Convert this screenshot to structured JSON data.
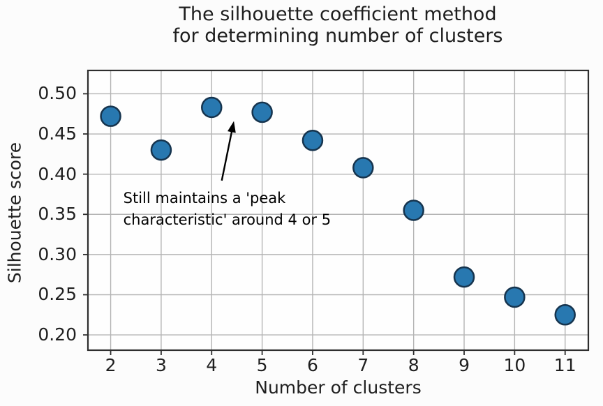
{
  "figure": {
    "title_line1": "The silhouette coefficient method",
    "title_line2": "for determining number of clusters"
  },
  "chart_data": {
    "type": "scatter",
    "title": "The silhouette coefficient method for determining number of clusters",
    "xlabel": "Number of clusters",
    "ylabel": "Silhouette score",
    "x": [
      2,
      3,
      4,
      5,
      6,
      7,
      8,
      9,
      10,
      11
    ],
    "y": [
      0.472,
      0.43,
      0.483,
      0.477,
      0.442,
      0.408,
      0.355,
      0.272,
      0.247,
      0.225
    ],
    "xlim": [
      1.55,
      11.46
    ],
    "ylim": [
      0.181,
      0.529
    ],
    "x_ticks": [
      2,
      3,
      4,
      5,
      6,
      7,
      8,
      9,
      10,
      11
    ],
    "x_tick_labels": [
      "2",
      "3",
      "4",
      "5",
      "6",
      "7",
      "8",
      "9",
      "10",
      "11"
    ],
    "y_ticks": [
      0.2,
      0.25,
      0.3,
      0.35,
      0.4,
      0.45,
      0.5
    ],
    "y_tick_labels": [
      "0.20",
      "0.25",
      "0.30",
      "0.35",
      "0.40",
      "0.45",
      "0.50"
    ],
    "grid": true,
    "legend": null,
    "annotation": {
      "line1": "Still maintains a 'peak",
      "line2": "characteristic' around 4 or 5",
      "text_pos": [
        2.25,
        0.383
      ],
      "arrow_start": [
        4.2,
        0.392
      ],
      "arrow_end": [
        4.44,
        0.466
      ]
    },
    "colors": {
      "marker_fill": "#2878b0",
      "marker_edge": "#16344e",
      "grid": "#b4b4b4",
      "spine": "#2e2e2e",
      "plot_background": "#fefefe",
      "arrow": "#000000"
    },
    "marker_radius": 14
  }
}
